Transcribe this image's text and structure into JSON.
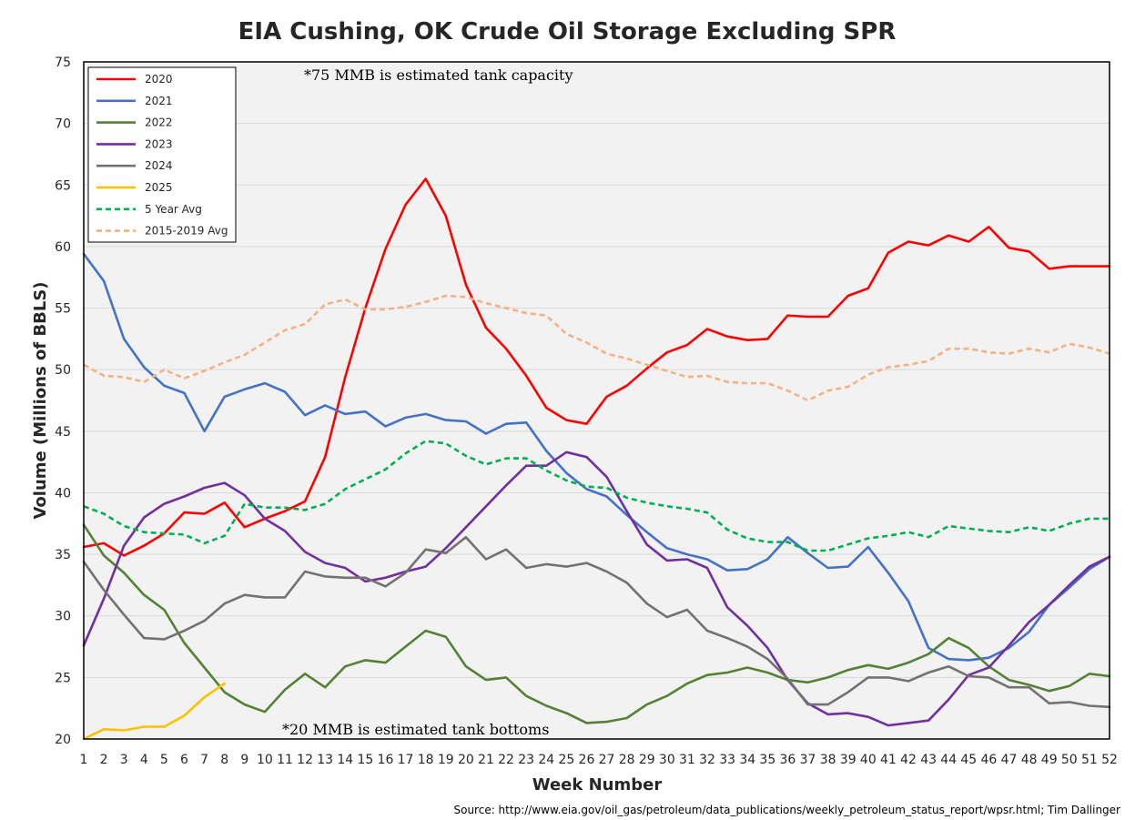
{
  "chart_data": {
    "type": "line",
    "title": "EIA Cushing, OK Crude Oil Storage Excluding SPR",
    "xlabel": "Week Number",
    "ylabel": "Volume (Millions of BBLS)",
    "xlim": [
      1,
      52
    ],
    "ylim": [
      20,
      75
    ],
    "yticks": [
      20,
      25,
      30,
      35,
      40,
      45,
      50,
      55,
      60,
      65,
      70,
      75
    ],
    "xticks": [
      1,
      2,
      3,
      4,
      5,
      6,
      7,
      8,
      9,
      10,
      11,
      12,
      13,
      14,
      15,
      16,
      17,
      18,
      19,
      20,
      21,
      22,
      23,
      24,
      25,
      26,
      27,
      28,
      29,
      30,
      31,
      32,
      33,
      34,
      35,
      36,
      37,
      38,
      39,
      40,
      41,
      42,
      43,
      44,
      45,
      46,
      47,
      48,
      49,
      50,
      51,
      52
    ],
    "grid": "horizontal",
    "legend_position": "top-left",
    "annotations": [
      "*75 MMB is estimated tank capacity",
      "*20 MMB is estimated tank bottoms"
    ],
    "source": "Source: http://www.eia.gov/oil_gas/petroleum/data_publications/weekly_petroleum_status_report/wpsr.html; Tim Dallinger",
    "series": [
      {
        "name": "2020",
        "color": "#ff0000",
        "dash": "solid",
        "values": [
          35.6,
          35.9,
          34.9,
          35.7,
          36.7,
          38.4,
          38.3,
          39.2,
          37.2,
          37.9,
          38.5,
          39.3,
          42.9,
          49.4,
          55.0,
          59.8,
          63.4,
          65.5,
          62.5,
          56.9,
          53.4,
          51.7,
          49.5,
          46.9,
          45.9,
          45.6,
          47.8,
          48.7,
          50.1,
          51.4,
          52.0,
          53.3,
          52.7,
          52.4,
          52.5,
          54.4,
          54.3,
          54.3,
          56.0,
          56.6,
          59.5,
          60.4,
          60.1,
          60.9,
          60.4,
          61.6,
          59.9,
          59.6,
          58.2,
          58.4,
          58.4,
          58.4
        ]
      },
      {
        "name": "2021",
        "color": "#4472c4",
        "dash": "solid",
        "values": [
          59.4,
          57.2,
          52.5,
          50.2,
          48.7,
          48.1,
          45.0,
          47.8,
          48.4,
          48.9,
          48.2,
          46.3,
          47.1,
          46.4,
          46.6,
          45.4,
          46.1,
          46.4,
          45.9,
          45.8,
          44.8,
          45.6,
          45.7,
          43.4,
          41.6,
          40.3,
          39.7,
          38.2,
          36.8,
          35.5,
          35.0,
          34.6,
          33.7,
          33.8,
          34.6,
          36.4,
          35.1,
          33.9,
          34.0,
          35.6,
          33.5,
          31.2,
          27.4,
          26.5,
          26.4,
          26.6,
          27.4,
          28.7,
          30.9,
          32.3,
          33.8,
          34.8
        ]
      },
      {
        "name": "2022",
        "color": "#548235",
        "dash": "solid",
        "values": [
          37.4,
          34.9,
          33.5,
          31.7,
          30.5,
          27.8,
          25.8,
          23.8,
          22.8,
          22.2,
          24.0,
          25.3,
          24.2,
          25.9,
          26.4,
          26.2,
          27.5,
          28.8,
          28.3,
          25.9,
          24.8,
          25.0,
          23.5,
          22.7,
          22.1,
          21.3,
          21.4,
          21.7,
          22.8,
          23.5,
          24.5,
          25.2,
          25.4,
          25.8,
          25.4,
          24.8,
          24.6,
          25.0,
          25.6,
          26.0,
          25.7,
          26.2,
          26.9,
          28.2,
          27.4,
          25.9,
          24.8,
          24.4,
          23.9,
          24.3,
          25.3,
          25.1
        ]
      },
      {
        "name": "2023",
        "color": "#7030a0",
        "dash": "solid",
        "values": [
          27.6,
          31.4,
          35.7,
          38.0,
          39.1,
          39.7,
          40.4,
          40.8,
          39.8,
          37.9,
          36.9,
          35.2,
          34.3,
          33.9,
          32.8,
          33.1,
          33.6,
          34.0,
          35.5,
          37.2,
          38.9,
          40.6,
          42.2,
          42.2,
          43.3,
          42.9,
          41.3,
          38.5,
          35.8,
          34.5,
          34.6,
          33.9,
          30.7,
          29.2,
          27.4,
          24.8,
          22.9,
          22.0,
          22.1,
          21.8,
          21.1,
          21.3,
          21.5,
          23.2,
          25.2,
          25.8,
          27.6,
          29.5,
          30.9,
          32.5,
          34.0,
          34.8
        ]
      },
      {
        "name": "2024",
        "color": "#767171",
        "dash": "solid",
        "values": [
          34.4,
          32.1,
          30.1,
          28.2,
          28.1,
          28.8,
          29.6,
          31.0,
          31.7,
          31.5,
          31.5,
          33.6,
          33.2,
          33.1,
          33.1,
          32.4,
          33.5,
          35.4,
          35.1,
          36.4,
          34.6,
          35.4,
          33.9,
          34.2,
          34.0,
          34.3,
          33.6,
          32.7,
          31.0,
          29.9,
          30.5,
          28.8,
          28.2,
          27.5,
          26.5,
          24.9,
          22.8,
          22.8,
          23.8,
          25.0,
          25.0,
          24.7,
          25.4,
          25.9,
          25.1,
          25.0,
          24.2,
          24.2,
          22.9,
          23.0,
          22.7,
          22.6
        ]
      },
      {
        "name": "2025",
        "color": "#ffc000",
        "dash": "solid",
        "values": [
          20.0,
          20.8,
          20.7,
          21.0,
          21.0,
          21.9,
          23.4,
          24.5
        ]
      },
      {
        "name": "5 Year Avg",
        "color": "#00b050",
        "dash": "dashed",
        "values": [
          38.9,
          38.3,
          37.3,
          36.8,
          36.7,
          36.6,
          35.9,
          36.5,
          39.1,
          38.8,
          38.8,
          38.6,
          39.1,
          40.3,
          41.1,
          41.9,
          43.2,
          44.2,
          44.0,
          43.0,
          42.3,
          42.8,
          42.8,
          41.8,
          41.0,
          40.5,
          40.4,
          39.6,
          39.2,
          38.9,
          38.7,
          38.4,
          37.0,
          36.3,
          36.0,
          36.0,
          35.3,
          35.3,
          35.8,
          36.3,
          36.5,
          36.8,
          36.4,
          37.3,
          37.1,
          36.9,
          36.8,
          37.2,
          36.9,
          37.5,
          37.9,
          37.9
        ]
      },
      {
        "name": "2015-2019 Avg",
        "color": "#f4b183",
        "dash": "dashed",
        "values": [
          50.4,
          49.5,
          49.4,
          49.0,
          50.0,
          49.3,
          49.9,
          50.6,
          51.2,
          52.2,
          53.2,
          53.7,
          55.3,
          55.7,
          54.9,
          54.9,
          55.1,
          55.5,
          56.0,
          55.9,
          55.4,
          55.0,
          54.6,
          54.4,
          52.9,
          52.2,
          51.3,
          50.9,
          50.4,
          49.9,
          49.4,
          49.5,
          49.0,
          48.9,
          48.9,
          48.3,
          47.5,
          48.3,
          48.6,
          49.6,
          50.2,
          50.4,
          50.7,
          51.7,
          51.7,
          51.4,
          51.3,
          51.7,
          51.4,
          52.1,
          51.8,
          51.3
        ]
      }
    ]
  }
}
